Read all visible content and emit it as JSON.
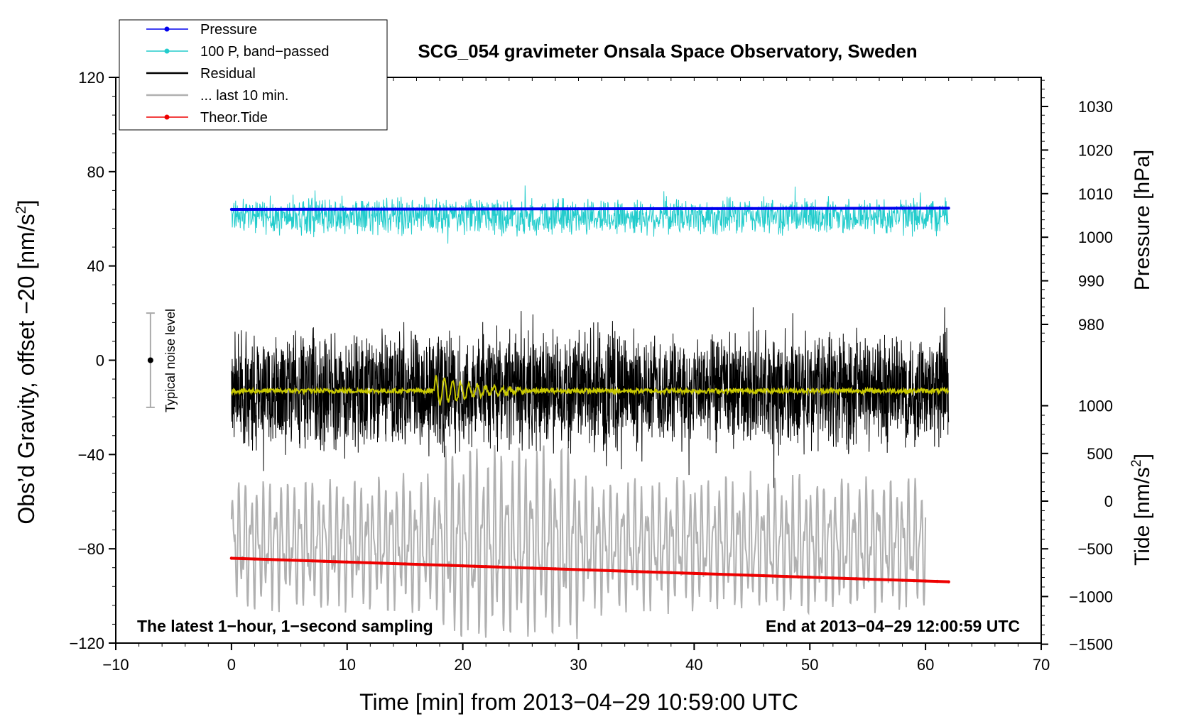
{
  "chart_data": {
    "type": "line",
    "title": "SCG_054 gravimeter Onsala Space Observatory, Sweden",
    "xlabel": "Time [min] from 2013−04−29 10:59:00 UTC",
    "ylabel": "Obs’d Gravity, offset −20 [nm/s",
    "ylabel_sup": "2",
    "ylabel_tail": "]",
    "y2label_pressure": "Pressure [hPa]",
    "y2label_tide": "Tide [nm/s",
    "y2label_tide_sup": "2",
    "y2label_tide_tail": "]",
    "xlim": [
      -10,
      70
    ],
    "ylim": [
      -120,
      120
    ],
    "pressure_axis_range": [
      980,
      1030
    ],
    "tide_axis_range": [
      -1500,
      1000
    ],
    "xticks": [
      {
        "v": -10,
        "t": "−10"
      },
      {
        "v": 0,
        "t": "0"
      },
      {
        "v": 10,
        "t": "10"
      },
      {
        "v": 20,
        "t": "20"
      },
      {
        "v": 30,
        "t": "30"
      },
      {
        "v": 40,
        "t": "40"
      },
      {
        "v": 50,
        "t": "50"
      },
      {
        "v": 60,
        "t": "60"
      },
      {
        "v": 70,
        "t": "70"
      }
    ],
    "yticks": [
      {
        "v": -120,
        "t": "−120"
      },
      {
        "v": -80,
        "t": "−80"
      },
      {
        "v": -40,
        "t": "−40"
      },
      {
        "v": 0,
        "t": "0"
      },
      {
        "v": 40,
        "t": "40"
      },
      {
        "v": 80,
        "t": "80"
      },
      {
        "v": 120,
        "t": "120"
      }
    ],
    "pressure_ticks": [
      {
        "v": 980,
        "t": "980"
      },
      {
        "v": 990,
        "t": "990"
      },
      {
        "v": 1000,
        "t": "1000"
      },
      {
        "v": 1010,
        "t": "1010"
      },
      {
        "v": 1020,
        "t": "1020"
      },
      {
        "v": 1030,
        "t": "1030"
      }
    ],
    "tide_ticks": [
      {
        "v": -1500,
        "t": "−1500"
      },
      {
        "v": -1000,
        "t": "−1000"
      },
      {
        "v": -500,
        "t": "−500"
      },
      {
        "v": 0,
        "t": "0"
      },
      {
        "v": 500,
        "t": "500"
      },
      {
        "v": 1000,
        "t": "1000"
      }
    ],
    "legend": {
      "placement": "top-left",
      "entries": [
        {
          "label": "Pressure",
          "color": "#0000ee",
          "marker": true
        },
        {
          "label": "100 P, band−passed",
          "color": "#22cccc",
          "marker": true
        },
        {
          "label": "Residual",
          "color": "#000000",
          "marker": false
        },
        {
          "label": "... last 10 min.",
          "color": "#b0b0b0",
          "marker": false
        },
        {
          "label": "Theor.Tide",
          "color": "#ee0000",
          "marker": true
        }
      ]
    },
    "annotations": {
      "left": "The latest 1−hour, 1−second sampling",
      "right": "End at 2013−04−29 12:00:59 UTC"
    },
    "noise_bar": {
      "label": "Typical noise level",
      "x": -7,
      "center": 0,
      "half_range": 20
    },
    "series": [
      {
        "name": "Pressure",
        "color": "#0000ee",
        "x_range": [
          0,
          62
        ],
        "start": 64,
        "end": 64.5,
        "unit": "nm/s2 scale"
      },
      {
        "name": "100 P, band-passed",
        "color": "#22cccc",
        "x_range": [
          0,
          62
        ],
        "center": 61,
        "amplitude": 9
      },
      {
        "name": "Residual",
        "color": "#000000",
        "x_range": [
          0,
          62
        ],
        "center": -13,
        "amplitude": 28
      },
      {
        "name": "Residual smoothed",
        "color": "#c8c800",
        "x_range": [
          0,
          62
        ],
        "center": -13,
        "amplitude": 2
      },
      {
        "name": "... last 10 min.",
        "color": "#b0b0b0",
        "x_range": [
          0,
          60
        ],
        "center": -78,
        "amplitude": 38
      },
      {
        "name": "Theor.Tide",
        "color": "#ee0000",
        "x_range": [
          0,
          62
        ],
        "start": -84,
        "end": -94
      }
    ]
  }
}
